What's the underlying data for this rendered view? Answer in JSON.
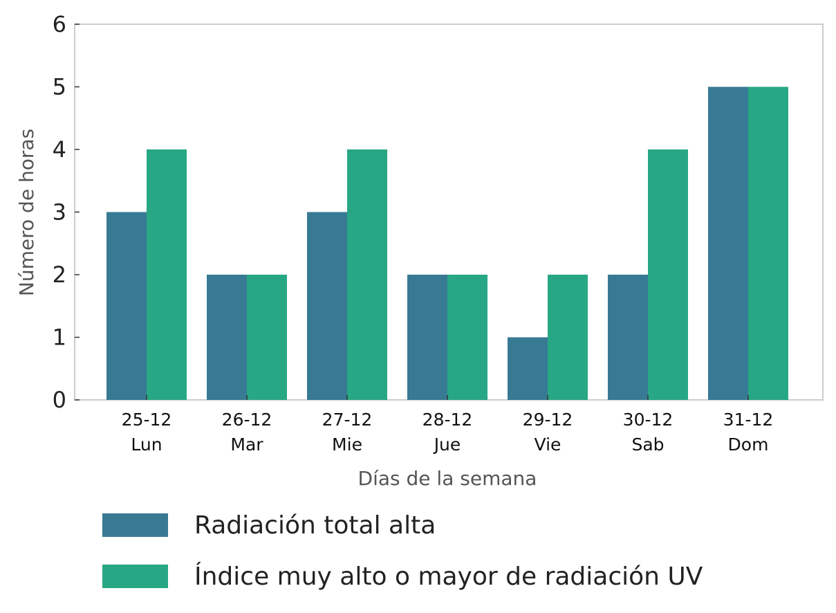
{
  "chart_data": {
    "type": "bar",
    "title": "",
    "xlabel": "Días de la semana",
    "ylabel": "Número de horas",
    "ylim": [
      0,
      6
    ],
    "yticks": [
      0,
      1,
      2,
      3,
      4,
      5,
      6
    ],
    "grid": false,
    "legend_position": "bottom",
    "categories": [
      [
        "25-12",
        "Lun"
      ],
      [
        "26-12",
        "Mar"
      ],
      [
        "27-12",
        "Mie"
      ],
      [
        "28-12",
        "Jue"
      ],
      [
        "29-12",
        "Vie"
      ],
      [
        "30-12",
        "Sab"
      ],
      [
        "31-12",
        "Dom"
      ]
    ],
    "series": [
      {
        "name": "Radiación total alta",
        "color": "#387a93",
        "values": [
          3,
          2,
          3,
          2,
          1,
          2,
          5
        ]
      },
      {
        "name": "Índice muy alto o mayor de radiación UV",
        "color": "#28a785",
        "values": [
          4,
          2,
          4,
          2,
          2,
          4,
          5
        ]
      }
    ]
  }
}
